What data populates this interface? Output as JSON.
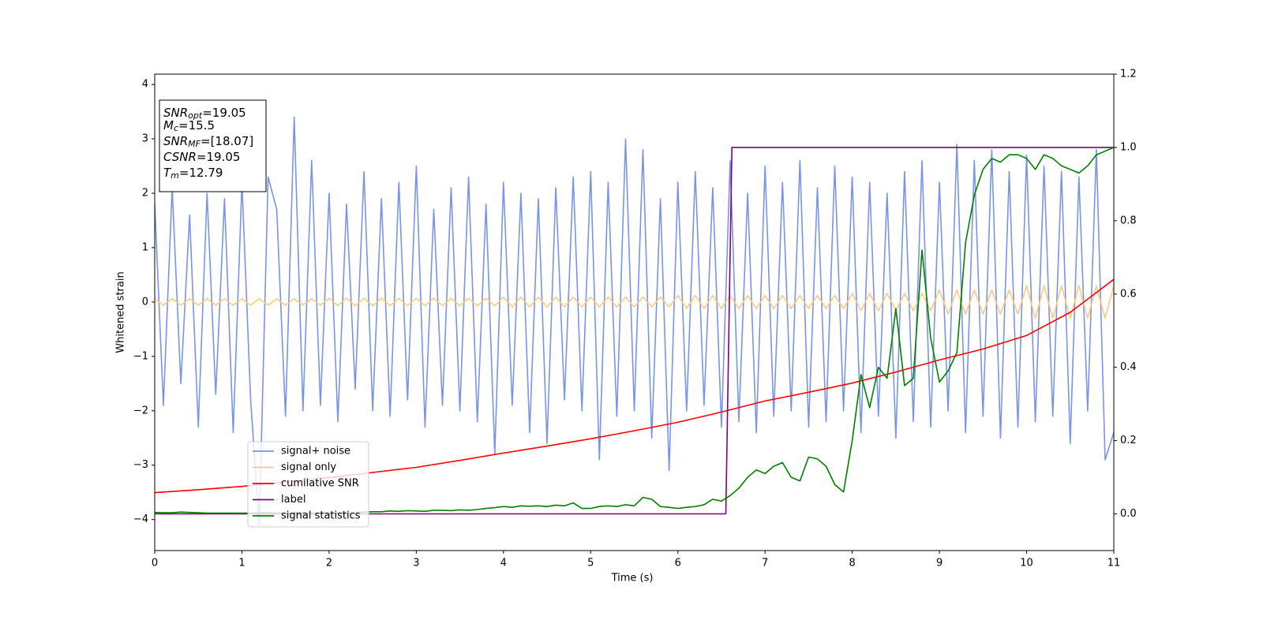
{
  "chart_data": {
    "type": "line",
    "xlabel": "Time (s)",
    "ylabel": "Whitened strain",
    "xlim": [
      0,
      11
    ],
    "ylim": [
      -4.57,
      4.19
    ],
    "y2lim": [
      -0.1,
      1.2
    ],
    "xticks": [
      0,
      1,
      2,
      3,
      4,
      5,
      6,
      7,
      8,
      9,
      10,
      11
    ],
    "yticks": [
      {
        "value": -4,
        "label": "−4"
      },
      {
        "value": -3,
        "label": "−3"
      },
      {
        "value": -2,
        "label": "−2"
      },
      {
        "value": -1,
        "label": "−1"
      },
      0,
      1,
      2,
      3,
      4
    ],
    "y2ticks": [
      {
        "value": 0,
        "label": "0.0"
      },
      0.2,
      0.4,
      0.6,
      0.8,
      {
        "value": 1,
        "label": "1.0"
      },
      1.2
    ],
    "legend": "lower left",
    "annotation": [
      [
        "SNR",
        "opt",
        "=19.05"
      ],
      [
        "M",
        "c",
        "=15.5"
      ],
      [
        "SNR",
        "MF",
        "=[18.07]"
      ],
      [
        "CSNR",
        "",
        "=19.05"
      ],
      [
        "T",
        "m",
        "=12.79"
      ]
    ],
    "x": [
      0,
      0.1,
      0.2,
      0.3,
      0.4,
      0.5,
      0.6,
      0.7,
      0.8,
      0.9,
      1,
      1.1,
      1.2,
      1.3,
      1.4,
      1.5,
      1.6,
      1.7,
      1.8,
      1.9,
      2,
      2.1,
      2.2,
      2.3,
      2.4,
      2.5,
      2.6,
      2.7,
      2.8,
      2.9,
      3,
      3.1,
      3.2,
      3.3,
      3.4,
      3.5,
      3.6,
      3.7,
      3.8,
      3.9,
      4,
      4.1,
      4.2,
      4.3,
      4.4,
      4.5,
      4.6,
      4.7,
      4.8,
      4.9,
      5,
      5.1,
      5.2,
      5.3,
      5.4,
      5.5,
      5.6,
      5.7,
      5.8,
      5.9,
      6,
      6.1,
      6.2,
      6.3,
      6.4,
      6.5,
      6.6,
      6.7,
      6.8,
      6.9,
      7,
      7.1,
      7.2,
      7.3,
      7.4,
      7.5,
      7.6,
      7.7,
      7.8,
      7.9,
      8,
      8.1,
      8.2,
      8.3,
      8.4,
      8.5,
      8.6,
      8.7,
      8.8,
      8.9,
      9,
      9.1,
      9.2,
      9.3,
      9.4,
      9.5,
      9.6,
      9.7,
      9.8,
      9.9,
      10,
      10.1,
      10.2,
      10.3,
      10.4,
      10.5,
      10.6,
      10.7,
      10.8,
      10.9,
      11
    ],
    "series": [
      {
        "name": "signal+ noise",
        "color": "#7994e8",
        "axis": "y",
        "values": [
          1.8,
          -1.9,
          2.1,
          -1.5,
          1.6,
          -2.3,
          2.0,
          -1.7,
          1.9,
          -2.4,
          2.2,
          -1.8,
          -4.1,
          2.3,
          1.7,
          -2.1,
          3.4,
          -2.0,
          2.6,
          -1.9,
          2.0,
          -2.2,
          1.8,
          -1.6,
          2.4,
          -2.0,
          1.9,
          -2.1,
          2.2,
          -1.8,
          2.5,
          -2.3,
          1.7,
          -1.9,
          2.1,
          -2.0,
          2.3,
          -2.2,
          1.8,
          -2.8,
          2.2,
          -1.9,
          2.0,
          -2.4,
          1.9,
          -2.6,
          2.1,
          -1.8,
          2.3,
          -2.0,
          2.4,
          -2.9,
          2.2,
          -2.1,
          3.0,
          -2.0,
          2.8,
          -2.5,
          1.9,
          -3.1,
          2.2,
          -2.0,
          2.4,
          -1.9,
          2.1,
          -2.3,
          2.6,
          -2.2,
          2.0,
          -2.4,
          2.5,
          -2.1,
          2.2,
          -2.0,
          2.6,
          -2.3,
          2.1,
          -2.2,
          2.5,
          -2.0,
          2.3,
          -2.4,
          2.2,
          -2.1,
          2.0,
          -2.5,
          2.4,
          -2.2,
          2.6,
          -2.3,
          2.2,
          -2.0,
          2.9,
          -2.4,
          2.6,
          -2.1,
          2.8,
          -2.5,
          2.4,
          -2.3,
          2.7,
          -2.2,
          2.5,
          -2.1,
          2.4,
          -2.6,
          2.3,
          -2.0,
          2.8,
          -2.9,
          -2.4
        ]
      },
      {
        "name": "signal only",
        "color": "#ffc97f",
        "axis": "y",
        "values": [
          0.06,
          -0.06,
          0.06,
          -0.06,
          0.06,
          -0.06,
          0.06,
          -0.06,
          0.06,
          -0.06,
          0.06,
          -0.06,
          0.06,
          -0.06,
          0.06,
          -0.06,
          0.06,
          -0.06,
          0.06,
          -0.06,
          0.07,
          -0.07,
          0.07,
          -0.07,
          0.07,
          -0.07,
          0.07,
          -0.07,
          0.07,
          -0.07,
          0.07,
          -0.07,
          0.07,
          -0.07,
          0.07,
          -0.07,
          0.07,
          -0.07,
          0.07,
          -0.07,
          0.09,
          -0.09,
          0.09,
          -0.09,
          0.09,
          -0.09,
          0.09,
          -0.09,
          0.09,
          -0.09,
          0.09,
          -0.09,
          0.09,
          -0.09,
          0.09,
          -0.09,
          0.09,
          -0.09,
          0.09,
          -0.09,
          0.12,
          -0.12,
          0.12,
          -0.12,
          0.12,
          -0.12,
          0.12,
          -0.12,
          0.12,
          -0.12,
          0.12,
          -0.12,
          0.12,
          -0.12,
          0.12,
          -0.12,
          0.12,
          -0.12,
          0.12,
          -0.12,
          0.16,
          -0.16,
          0.16,
          -0.16,
          0.16,
          -0.16,
          0.16,
          -0.16,
          0.16,
          -0.16,
          0.22,
          -0.22,
          0.22,
          -0.22,
          0.22,
          -0.22,
          0.22,
          -0.22,
          0.22,
          -0.22,
          0.3,
          -0.3,
          0.3,
          -0.3,
          0.3,
          -0.3,
          0.3,
          -0.3,
          0.3,
          -0.3,
          0.3
        ]
      },
      {
        "name": "cumilative SNR",
        "color": "#ff0000",
        "axis": "y2",
        "x": [
          0,
          0.5,
          1,
          1.5,
          2,
          2.5,
          3,
          3.5,
          4,
          4.5,
          5,
          5.5,
          6,
          6.5,
          7,
          7.5,
          8,
          8.5,
          9,
          9.5,
          10,
          10.5,
          11
        ],
        "values": [
          0.058,
          0.066,
          0.075,
          0.087,
          0.099,
          0.113,
          0.127,
          0.146,
          0.166,
          0.185,
          0.205,
          0.227,
          0.25,
          0.278,
          0.308,
          0.332,
          0.357,
          0.387,
          0.42,
          0.45,
          0.487,
          0.55,
          0.64
        ]
      },
      {
        "name": "label",
        "color": "#800080",
        "axis": "y2",
        "x": [
          0,
          6.55,
          6.62,
          11
        ],
        "values": [
          0,
          0,
          1,
          1
        ]
      },
      {
        "name": "signal statistics",
        "color": "#008000",
        "axis": "y2",
        "values": [
          0.004,
          0.003,
          0.003,
          0.005,
          0.004,
          0.003,
          0.002,
          0.002,
          0.002,
          0.002,
          0.002,
          0.002,
          0.003,
          0.003,
          0.002,
          0.002,
          0.003,
          0.003,
          0.002,
          0.002,
          0.003,
          0.003,
          0.004,
          0.003,
          0.005,
          0.006,
          0.006,
          0.008,
          0.007,
          0.009,
          0.008,
          0.007,
          0.01,
          0.01,
          0.009,
          0.011,
          0.01,
          0.012,
          0.015,
          0.017,
          0.02,
          0.018,
          0.022,
          0.021,
          0.022,
          0.02,
          0.024,
          0.022,
          0.03,
          0.015,
          0.015,
          0.02,
          0.022,
          0.02,
          0.025,
          0.022,
          0.045,
          0.04,
          0.02,
          0.018,
          0.015,
          0.018,
          0.02,
          0.025,
          0.04,
          0.035,
          0.05,
          0.07,
          0.1,
          0.12,
          0.11,
          0.13,
          0.14,
          0.1,
          0.09,
          0.155,
          0.15,
          0.13,
          0.08,
          0.06,
          0.2,
          0.38,
          0.29,
          0.4,
          0.37,
          0.56,
          0.35,
          0.37,
          0.72,
          0.48,
          0.36,
          0.39,
          0.44,
          0.74,
          0.87,
          0.94,
          0.97,
          0.96,
          0.98,
          0.98,
          0.97,
          0.94,
          0.98,
          0.97,
          0.95,
          0.94,
          0.93,
          0.95,
          0.98,
          0.99,
          1.0
        ]
      }
    ]
  }
}
